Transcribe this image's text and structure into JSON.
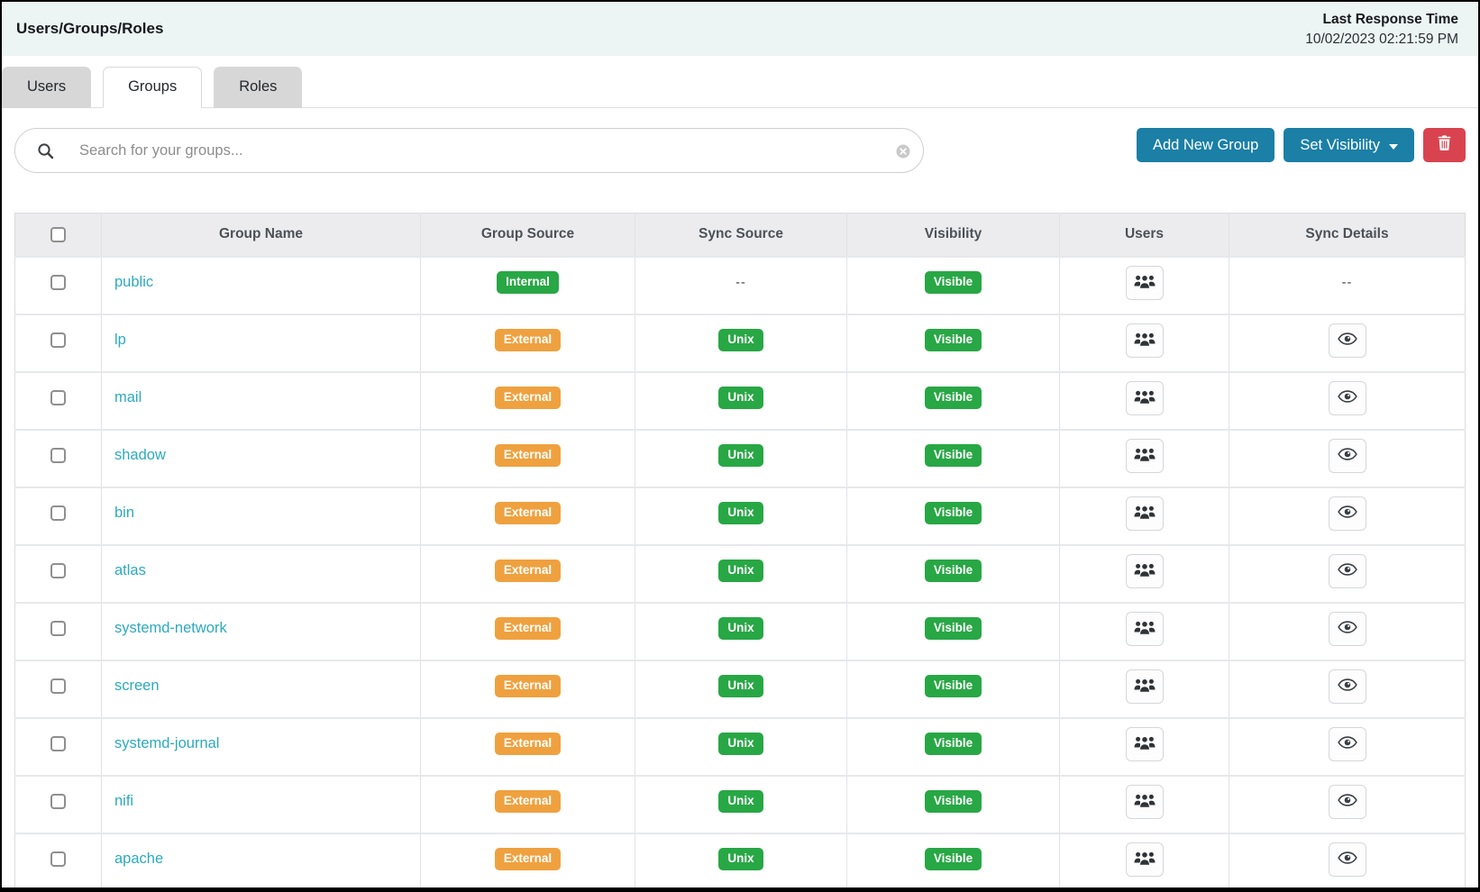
{
  "header": {
    "title": "Users/Groups/Roles",
    "last_response_label": "Last Response Time",
    "last_response_value": "10/02/2023 02:21:59 PM"
  },
  "tabs": [
    {
      "label": "Users",
      "active": false
    },
    {
      "label": "Groups",
      "active": true
    },
    {
      "label": "Roles",
      "active": false
    }
  ],
  "toolbar": {
    "search_placeholder": "Search for your groups...",
    "add_group_label": "Add New Group",
    "set_visibility_label": "Set Visibility",
    "icons": {
      "search": "search-icon",
      "clear": "clear-circle-icon",
      "caret": "caret-down-icon",
      "trash": "trash-icon"
    }
  },
  "table": {
    "columns": [
      "Group Name",
      "Group Source",
      "Sync Source",
      "Visibility",
      "Users",
      "Sync Details"
    ],
    "empty_value": "--",
    "rows": [
      {
        "name": "public",
        "group_source": "Internal",
        "sync_source": "--",
        "visibility": "Visible",
        "users": "users-icon-button",
        "sync_details": "--"
      },
      {
        "name": "lp",
        "group_source": "External",
        "sync_source": "Unix",
        "visibility": "Visible",
        "users": "users-icon-button",
        "sync_details": "eye-icon-button"
      },
      {
        "name": "mail",
        "group_source": "External",
        "sync_source": "Unix",
        "visibility": "Visible",
        "users": "users-icon-button",
        "sync_details": "eye-icon-button"
      },
      {
        "name": "shadow",
        "group_source": "External",
        "sync_source": "Unix",
        "visibility": "Visible",
        "users": "users-icon-button",
        "sync_details": "eye-icon-button"
      },
      {
        "name": "bin",
        "group_source": "External",
        "sync_source": "Unix",
        "visibility": "Visible",
        "users": "users-icon-button",
        "sync_details": "eye-icon-button"
      },
      {
        "name": "atlas",
        "group_source": "External",
        "sync_source": "Unix",
        "visibility": "Visible",
        "users": "users-icon-button",
        "sync_details": "eye-icon-button"
      },
      {
        "name": "systemd-network",
        "group_source": "External",
        "sync_source": "Unix",
        "visibility": "Visible",
        "users": "users-icon-button",
        "sync_details": "eye-icon-button"
      },
      {
        "name": "screen",
        "group_source": "External",
        "sync_source": "Unix",
        "visibility": "Visible",
        "users": "users-icon-button",
        "sync_details": "eye-icon-button"
      },
      {
        "name": "systemd-journal",
        "group_source": "External",
        "sync_source": "Unix",
        "visibility": "Visible",
        "users": "users-icon-button",
        "sync_details": "eye-icon-button"
      },
      {
        "name": "nifi",
        "group_source": "External",
        "sync_source": "Unix",
        "visibility": "Visible",
        "users": "users-icon-button",
        "sync_details": "eye-icon-button"
      },
      {
        "name": "apache",
        "group_source": "External",
        "sync_source": "Unix",
        "visibility": "Visible",
        "users": "users-icon-button",
        "sync_details": "eye-icon-button"
      }
    ]
  },
  "colors": {
    "topbar_bg": "#edf4f4",
    "accent_blue": "#1b7fa6",
    "danger_red": "#d9434f",
    "badge_green": "#28a745",
    "badge_orange": "#efa13f",
    "link_teal": "#2caabf"
  }
}
